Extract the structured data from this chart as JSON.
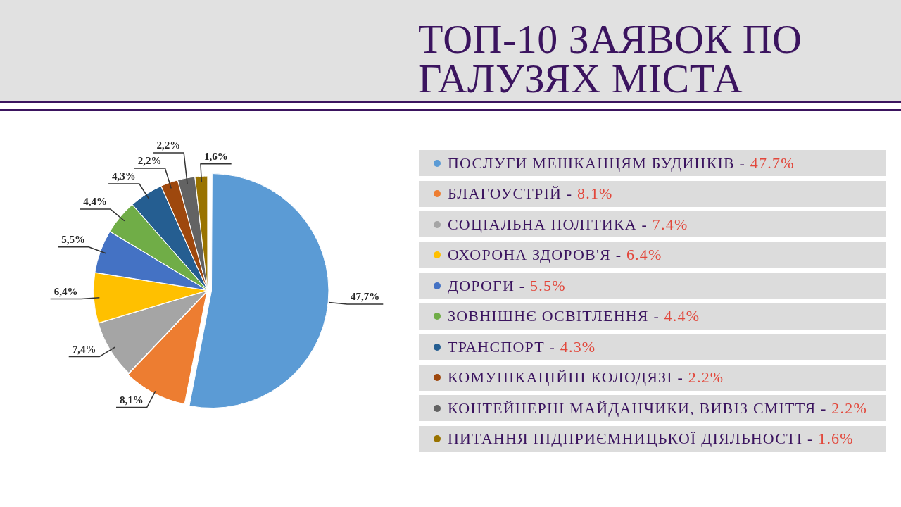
{
  "chart_data": {
    "type": "pie",
    "title": "ТОП-10 ЗАЯВОК ПО ГАЛУЗЯХ МІСТА",
    "categories": [
      "ПОСЛУГИ МЕШКАНЦЯМ БУДИНКІВ - 47.7%",
      "БЛАГОУСТРІЙ - 8.1%",
      "СОЦІАЛЬНА ПОЛІТИКА - 7.4%",
      "ОХОРОНА ЗДОРОВ'Я - 6.4%",
      "ДОРОГИ - 5.5%",
      "ЗОВНІШНЄ ОСВІТЛЕННЯ - 4.4%",
      "ТРАНСПОРТ - 4.3%",
      "КОМУНІКАЦІЙНІ КОЛОДЯЗІ - 2.2%",
      "КОНТЕЙНЕРНІ МАЙДАНЧИКИ, ВИВІЗ СМІТТЯ - 2.2%",
      "ПИТАННЯ ПІДПРИЄМНИЦЬКОЇ ДІЯЛЬНОСТІ - 1.6%"
    ],
    "values": [
      47.7,
      8.1,
      7.4,
      6.4,
      5.5,
      4.4,
      4.3,
      2.2,
      2.2,
      1.6
    ],
    "colors": [
      "#5b9bd5",
      "#ed7d31",
      "#a5a5a5",
      "#ffc000",
      "#4472c4",
      "#70ad47",
      "#255e91",
      "#9e480e",
      "#636363",
      "#997300"
    ],
    "value_labels": [
      "47,7%",
      "8,1%",
      "7,4%",
      "6,4%",
      "5,5%",
      "4,4%",
      "4,3%",
      "2,2%",
      "2,2%",
      "1,6%"
    ],
    "legend": "right"
  }
}
